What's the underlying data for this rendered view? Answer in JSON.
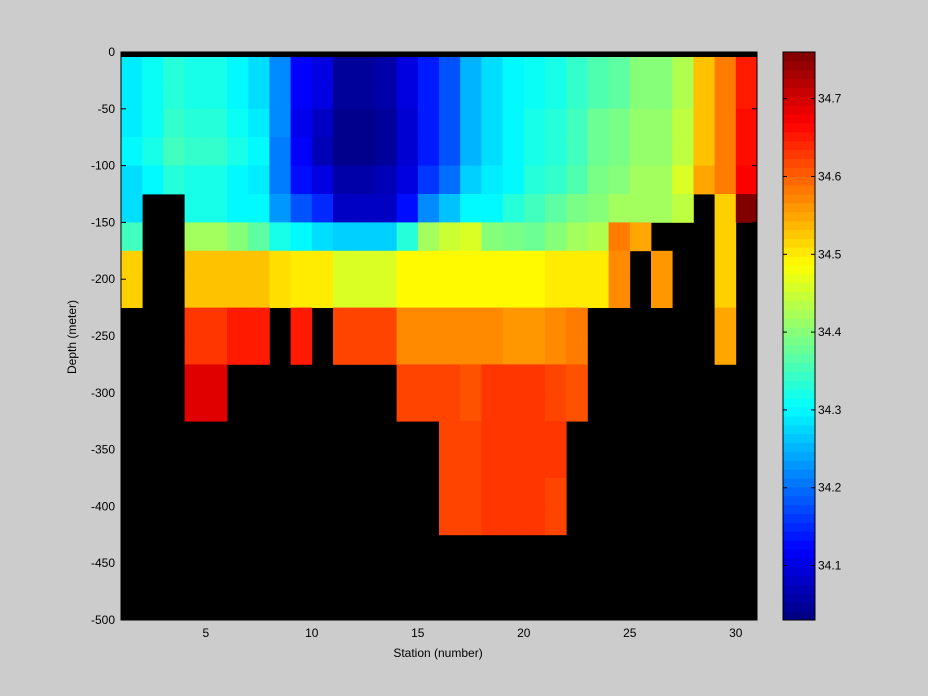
{
  "chart_data": {
    "type": "heatmap",
    "title": "",
    "xlabel": "Station (number)",
    "ylabel": "Depth (meter)",
    "xlim": [
      1,
      31
    ],
    "ylim": [
      -500,
      0
    ],
    "xticks": [
      "5",
      "10",
      "15",
      "20",
      "25",
      "30"
    ],
    "yticks": [
      "0",
      "-50",
      "-100",
      "-150",
      "-200",
      "-250",
      "-300",
      "-350",
      "-400",
      "-450",
      "-500"
    ],
    "colorbar": {
      "colormap": "jet",
      "range": [
        34.03,
        34.76
      ],
      "ticks": [
        "34.1",
        "34.2",
        "34.3",
        "34.4",
        "34.5",
        "34.6",
        "34.7"
      ]
    },
    "grid": false,
    "masked_color": "#000000",
    "depth_bin_meters": 25,
    "note_masked": "null = no data (black)",
    "stations": [
      1,
      2,
      3,
      4,
      5,
      6,
      7,
      8,
      9,
      10,
      11,
      12,
      13,
      14,
      15,
      16,
      17,
      18,
      19,
      20,
      21,
      22,
      23,
      24,
      25,
      26,
      27,
      28,
      29,
      30
    ],
    "depths": [
      0,
      -25,
      -50,
      -75,
      -100,
      -125,
      -150,
      -175,
      -200,
      -225,
      -250,
      -275,
      -300,
      -325,
      -350,
      -375,
      -400,
      -425,
      -450,
      -475
    ],
    "values": [
      [
        34.29,
        34.31,
        34.33,
        34.32,
        34.32,
        34.3,
        34.28,
        34.22,
        34.12,
        34.1,
        34.05,
        34.05,
        34.06,
        34.1,
        34.14,
        34.18,
        34.25,
        34.28,
        34.3,
        34.31,
        34.32,
        34.34,
        34.36,
        34.37,
        34.4,
        34.4,
        34.43,
        34.53,
        34.58,
        34.65
      ],
      [
        34.29,
        34.31,
        34.33,
        34.32,
        34.32,
        34.3,
        34.28,
        34.22,
        34.12,
        34.1,
        34.05,
        34.05,
        34.06,
        34.1,
        34.14,
        34.18,
        34.25,
        34.28,
        34.3,
        34.31,
        34.32,
        34.34,
        34.36,
        34.37,
        34.4,
        34.4,
        34.43,
        34.53,
        34.58,
        34.65
      ],
      [
        34.29,
        34.31,
        34.34,
        34.33,
        34.33,
        34.31,
        34.29,
        34.22,
        34.11,
        34.08,
        34.04,
        34.04,
        34.05,
        34.09,
        34.14,
        34.18,
        34.25,
        34.28,
        34.3,
        34.32,
        34.33,
        34.35,
        34.38,
        34.39,
        34.41,
        34.41,
        34.44,
        34.53,
        34.58,
        34.66
      ],
      [
        34.3,
        34.32,
        34.35,
        34.34,
        34.34,
        34.32,
        34.3,
        34.21,
        34.12,
        34.07,
        34.04,
        34.04,
        34.05,
        34.09,
        34.14,
        34.18,
        34.25,
        34.28,
        34.3,
        34.32,
        34.33,
        34.35,
        34.38,
        34.39,
        34.41,
        34.41,
        34.44,
        34.53,
        34.58,
        34.66
      ],
      [
        34.28,
        34.3,
        34.33,
        34.32,
        34.32,
        34.3,
        34.29,
        34.21,
        34.13,
        34.1,
        34.06,
        34.06,
        34.07,
        34.1,
        34.16,
        34.2,
        34.27,
        34.29,
        34.3,
        34.33,
        34.34,
        34.36,
        34.39,
        34.4,
        34.42,
        34.42,
        34.46,
        34.55,
        34.58,
        34.67
      ],
      [
        34.28,
        null,
        null,
        34.32,
        34.32,
        34.3,
        34.3,
        34.23,
        34.18,
        34.15,
        34.08,
        34.08,
        34.08,
        34.13,
        34.22,
        34.26,
        34.3,
        34.3,
        34.33,
        34.35,
        34.37,
        34.39,
        34.4,
        34.42,
        34.42,
        34.42,
        34.44,
        null,
        34.52,
        34.76
      ],
      [
        34.35,
        null,
        null,
        34.42,
        34.42,
        34.4,
        34.37,
        34.32,
        34.3,
        34.28,
        34.27,
        34.27,
        34.27,
        34.33,
        34.42,
        34.45,
        34.46,
        34.4,
        34.39,
        34.38,
        34.4,
        34.42,
        34.43,
        34.58,
        34.55,
        null,
        null,
        null,
        34.52,
        null
      ],
      [
        34.52,
        null,
        null,
        34.53,
        34.53,
        34.53,
        34.53,
        34.51,
        34.5,
        34.5,
        34.46,
        34.46,
        34.46,
        34.49,
        34.49,
        34.49,
        34.49,
        34.49,
        34.49,
        34.49,
        34.5,
        34.5,
        34.5,
        34.57,
        null,
        34.56,
        null,
        null,
        34.52,
        null
      ],
      [
        34.52,
        null,
        null,
        34.53,
        34.53,
        34.53,
        34.53,
        34.51,
        34.5,
        34.5,
        34.46,
        34.46,
        34.46,
        34.49,
        34.49,
        34.49,
        34.49,
        34.49,
        34.49,
        34.49,
        34.5,
        34.5,
        34.5,
        34.57,
        null,
        34.56,
        null,
        null,
        34.52,
        null
      ],
      [
        null,
        null,
        null,
        34.63,
        34.63,
        34.65,
        34.65,
        null,
        34.65,
        null,
        34.62,
        34.62,
        34.62,
        34.57,
        34.57,
        34.57,
        34.57,
        34.57,
        34.56,
        34.56,
        34.57,
        34.58,
        null,
        null,
        null,
        null,
        null,
        null,
        34.55,
        null
      ],
      [
        null,
        null,
        null,
        34.63,
        34.63,
        34.65,
        34.65,
        null,
        34.65,
        null,
        34.62,
        34.62,
        34.62,
        34.57,
        34.57,
        34.57,
        34.57,
        34.57,
        34.56,
        34.56,
        34.57,
        34.58,
        null,
        null,
        null,
        null,
        null,
        null,
        34.55,
        null
      ],
      [
        null,
        null,
        null,
        34.69,
        34.69,
        null,
        null,
        null,
        null,
        null,
        null,
        null,
        null,
        34.62,
        34.62,
        34.62,
        34.61,
        34.63,
        34.63,
        34.63,
        34.62,
        34.61,
        null,
        null,
        null,
        null,
        null,
        null,
        null,
        null
      ],
      [
        null,
        null,
        null,
        34.69,
        34.69,
        null,
        null,
        null,
        null,
        null,
        null,
        null,
        null,
        34.62,
        34.62,
        34.62,
        34.61,
        34.63,
        34.63,
        34.63,
        34.62,
        34.61,
        null,
        null,
        null,
        null,
        null,
        null,
        null,
        null
      ],
      [
        null,
        null,
        null,
        null,
        null,
        null,
        null,
        null,
        null,
        null,
        null,
        null,
        null,
        null,
        null,
        34.62,
        34.62,
        34.63,
        34.63,
        34.63,
        34.63,
        null,
        null,
        null,
        null,
        null,
        null,
        null,
        null,
        null
      ],
      [
        null,
        null,
        null,
        null,
        null,
        null,
        null,
        null,
        null,
        null,
        null,
        null,
        null,
        null,
        null,
        34.62,
        34.62,
        34.63,
        34.63,
        34.63,
        34.63,
        null,
        null,
        null,
        null,
        null,
        null,
        null,
        null,
        null
      ],
      [
        null,
        null,
        null,
        null,
        null,
        null,
        null,
        null,
        null,
        null,
        null,
        null,
        null,
        null,
        null,
        34.62,
        34.62,
        34.63,
        34.63,
        34.63,
        34.62,
        null,
        null,
        null,
        null,
        null,
        null,
        null,
        null,
        null
      ],
      [
        null,
        null,
        null,
        null,
        null,
        null,
        null,
        null,
        null,
        null,
        null,
        null,
        null,
        null,
        null,
        34.62,
        34.62,
        34.63,
        34.63,
        34.63,
        34.62,
        null,
        null,
        null,
        null,
        null,
        null,
        null,
        null,
        null
      ],
      [
        null,
        null,
        null,
        null,
        null,
        null,
        null,
        null,
        null,
        null,
        null,
        null,
        null,
        null,
        null,
        null,
        null,
        null,
        null,
        null,
        null,
        null,
        null,
        null,
        null,
        null,
        null,
        null,
        null,
        null
      ],
      [
        null,
        null,
        null,
        null,
        null,
        null,
        null,
        null,
        null,
        null,
        null,
        null,
        null,
        null,
        null,
        null,
        null,
        null,
        null,
        null,
        null,
        null,
        null,
        null,
        null,
        null,
        null,
        null,
        null,
        null
      ],
      [
        null,
        null,
        null,
        null,
        null,
        null,
        null,
        null,
        null,
        null,
        null,
        null,
        null,
        null,
        null,
        null,
        null,
        null,
        null,
        null,
        null,
        null,
        null,
        null,
        null,
        null,
        null,
        null,
        null,
        null
      ]
    ]
  }
}
